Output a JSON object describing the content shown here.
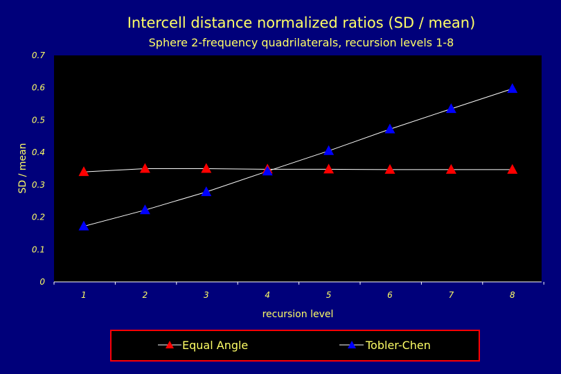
{
  "chart_data": {
    "type": "line",
    "title": "Intercell distance normalized ratios (SD / mean)",
    "subtitle": "Sphere 2-frequency quadrilaterals, recursion levels 1-8",
    "xlabel": "recursion level",
    "ylabel": "SD / mean",
    "categories": [
      "1",
      "2",
      "3",
      "4",
      "5",
      "6",
      "7",
      "8"
    ],
    "yticks": [
      "0",
      "0.1",
      "0.2",
      "0.3",
      "0.4",
      "0.5",
      "0.6",
      "0.7"
    ],
    "ylim": [
      0,
      0.7
    ],
    "grid": false,
    "legend_position": "bottom",
    "series": [
      {
        "name": "Equal Angle",
        "color": "#ff0000",
        "marker": "triangle",
        "values": [
          0.34,
          0.35,
          0.35,
          0.348,
          0.348,
          0.347,
          0.347,
          0.347
        ]
      },
      {
        "name": "Tobler-Chen",
        "color": "#0000ff",
        "marker": "triangle",
        "values": [
          0.172,
          0.222,
          0.278,
          0.342,
          0.405,
          0.472,
          0.535,
          0.597
        ]
      }
    ],
    "colors": {
      "background": "#00007a",
      "plot_area": "#000000",
      "text": "#ffff66",
      "line": "#ffffff",
      "legend_border": "#ff0000"
    }
  }
}
